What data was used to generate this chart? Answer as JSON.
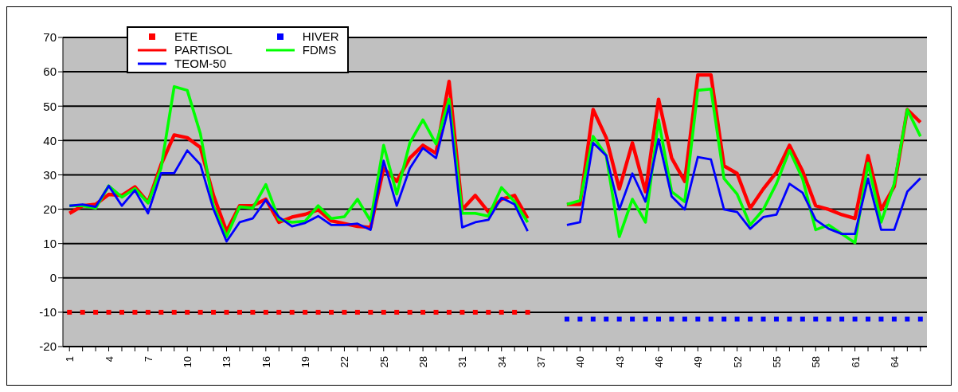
{
  "chart_data": {
    "type": "line",
    "categories": [
      "1",
      null,
      null,
      "4",
      null,
      null,
      "7",
      null,
      null,
      "10",
      null,
      null,
      "13",
      null,
      null,
      "16",
      null,
      null,
      "19",
      null,
      null,
      "22",
      null,
      null,
      "25",
      null,
      null,
      "28",
      null,
      null,
      "31",
      null,
      null,
      "34",
      null,
      null,
      "37",
      null,
      null,
      "40",
      null,
      null,
      "43",
      null,
      null,
      "46",
      null,
      null,
      "49",
      null,
      null,
      "52",
      null,
      null,
      "55",
      null,
      null,
      "58",
      null,
      null,
      "61",
      null,
      null,
      "64",
      null,
      null
    ],
    "ylim": [
      -20,
      70
    ],
    "yticks": [
      -20,
      -10,
      0,
      10,
      20,
      30,
      40,
      50,
      60,
      70
    ],
    "grid": "y",
    "legend": "top left",
    "line_style": "solid",
    "series": [
      {
        "name": "ETE",
        "type": "scatter",
        "marker": "square",
        "color": "#ff0000",
        "values": [
          -10,
          -10,
          -10,
          -10,
          -10,
          -10,
          -10,
          -10,
          -10,
          -10,
          -10,
          -10,
          -10,
          -10,
          -10,
          -10,
          -10,
          -10,
          -10,
          -10,
          -10,
          -10,
          -10,
          -10,
          -10,
          -10,
          -10,
          -10,
          -10,
          -10,
          -10,
          -10,
          -10,
          -10,
          -10,
          -10,
          null,
          null,
          null,
          null,
          null,
          null,
          null,
          null,
          null,
          null,
          null,
          null,
          null,
          null,
          null,
          null,
          null,
          null,
          null,
          null,
          null,
          null,
          null,
          null,
          null,
          null,
          null,
          null,
          null,
          null
        ]
      },
      {
        "name": "HIVER",
        "type": "scatter",
        "marker": "square",
        "color": "#0000ff",
        "values": [
          null,
          null,
          null,
          null,
          null,
          null,
          null,
          null,
          null,
          null,
          null,
          null,
          null,
          null,
          null,
          null,
          null,
          null,
          null,
          null,
          null,
          null,
          null,
          null,
          null,
          null,
          null,
          null,
          null,
          null,
          null,
          null,
          null,
          null,
          null,
          null,
          null,
          null,
          -12,
          -12,
          -12,
          -12,
          -12,
          -12,
          -12,
          -12,
          -12,
          -12,
          -12,
          -12,
          -12,
          -12,
          -12,
          -12,
          -12,
          -12,
          -12,
          -12,
          -12,
          -12,
          -12,
          -12,
          -12,
          -12,
          -12,
          -12
        ]
      },
      {
        "name": "PARTISOL",
        "color": "#ff0000",
        "values": [
          18.8,
          21,
          21.4,
          24.3,
          24,
          26.5,
          22,
          33,
          41.6,
          40.8,
          38,
          24,
          13.6,
          21,
          21,
          22.9,
          16.2,
          17.7,
          18.5,
          19.8,
          16.6,
          15.8,
          15,
          14.7,
          31.9,
          28.1,
          34.9,
          38.6,
          36.3,
          57.2,
          19.9,
          24,
          19.2,
          22.9,
          24,
          17.3,
          null,
          null,
          21.4,
          21.4,
          49,
          40.8,
          25.9,
          39.3,
          25.1,
          52,
          34.9,
          28.1,
          59.1,
          59.1,
          32.6,
          30.4,
          20.3,
          25.9,
          30.7,
          38.6,
          31.1,
          21,
          19.9,
          18.4,
          17.3,
          35.6,
          19.9,
          26.6,
          49,
          45.3
        ]
      },
      {
        "name": "FDMS",
        "color": "#00ff00",
        "values": [
          21,
          21,
          20.3,
          26.8,
          23.5,
          26,
          21.8,
          32,
          55.7,
          54.6,
          42,
          21,
          12,
          20.7,
          20.3,
          27.2,
          17,
          16.2,
          16.5,
          21,
          17.3,
          17.8,
          22.9,
          16.6,
          38.6,
          24.4,
          39.3,
          46,
          39,
          52,
          18.8,
          18.8,
          18,
          26.3,
          22.2,
          16.2,
          null,
          null,
          21.4,
          22.5,
          41.2,
          35.6,
          12,
          22.9,
          16.2,
          46,
          25.1,
          22.2,
          54.6,
          55,
          28.9,
          24.4,
          15.4,
          19.9,
          27.4,
          37.1,
          28.9,
          14,
          15.4,
          12.8,
          10.2,
          33.4,
          16.2,
          27.4,
          49,
          41.2
        ]
      },
      {
        "name": "TEOM-50",
        "color": "#0000ff",
        "values": [
          21,
          21.4,
          20.7,
          26.8,
          21,
          25.5,
          18.8,
          30.5,
          30.5,
          37.1,
          33,
          20,
          10.6,
          16.2,
          17.3,
          22.7,
          17.7,
          15,
          16,
          18,
          15.4,
          15.4,
          15.8,
          14,
          34.1,
          21,
          31.9,
          37.8,
          34.9,
          50.1,
          14.7,
          16.2,
          16.9,
          23.3,
          21.4,
          13.6,
          null,
          null,
          15.4,
          16.2,
          39.3,
          35.6,
          19.9,
          30.4,
          22.2,
          40.4,
          23.7,
          19.9,
          35.2,
          34.5,
          19.9,
          19.2,
          14.3,
          17.7,
          18.4,
          27.4,
          24.8,
          16.9,
          14.3,
          12.8,
          12.8,
          28.9,
          14,
          14,
          25.1,
          29
        ]
      }
    ]
  }
}
